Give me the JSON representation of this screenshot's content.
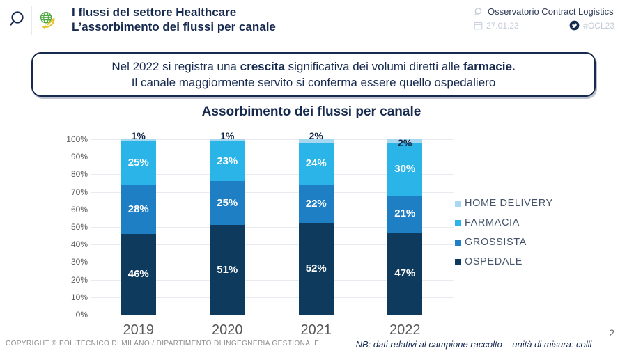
{
  "header": {
    "title_line1": "I flussi del settore Healthcare",
    "title_line2": "L’assorbimento dei flussi per canale",
    "brand": "Osservatorio Contract Logistics",
    "date": "27.01.23",
    "hashtag": "#OCL23"
  },
  "banner": {
    "line1_pre": "Nel 2022 si registra una ",
    "line1_bold1": "crescita",
    "line1_mid": " significativa dei volumi diretti alle ",
    "line1_bold2": "farmacie.",
    "line2": "Il canale maggiormente servito si conferma essere quello ospedaliero"
  },
  "chart_data": {
    "type": "bar",
    "stacked": true,
    "title": "Assorbimento dei flussi per canale",
    "categories": [
      "2019",
      "2020",
      "2021",
      "2022"
    ],
    "series": [
      {
        "name": "OSPEDALE",
        "color": "#0E3A5E",
        "values": [
          46,
          51,
          52,
          47
        ]
      },
      {
        "name": "GROSSISTA",
        "color": "#1E7FC4",
        "values": [
          28,
          25,
          22,
          21
        ]
      },
      {
        "name": "FARMACIA",
        "color": "#2BB4E8",
        "values": [
          25,
          23,
          24,
          30
        ]
      },
      {
        "name": "HOME DELIVERY",
        "color": "#A8D8F0",
        "values": [
          1,
          1,
          2,
          2
        ],
        "label_outside": true
      }
    ],
    "legend": [
      {
        "label": "HOME DELIVERY",
        "color": "#A8D8F0"
      },
      {
        "label": "FARMACIA",
        "color": "#2BB4E8"
      },
      {
        "label": "GROSSISTA",
        "color": "#1E7FC4"
      },
      {
        "label": "OSPEDALE",
        "color": "#0E3A5E"
      }
    ],
    "ylim": [
      0,
      100
    ],
    "ytick_step": 10,
    "ytick_format": "percent",
    "grid": true,
    "legend_position": "right",
    "value_labels": "percent",
    "outside_label_overlaps_bar": [
      false,
      false,
      false,
      true
    ]
  },
  "footer": {
    "copyright": "COPYRIGHT © POLITECNICO DI MILANO / DIPARTIMENTO DI INGEGNERIA GESTIONALE",
    "note": "NB: dati relativi al campione raccolto – unità di misura: colli",
    "page_number": "2"
  }
}
